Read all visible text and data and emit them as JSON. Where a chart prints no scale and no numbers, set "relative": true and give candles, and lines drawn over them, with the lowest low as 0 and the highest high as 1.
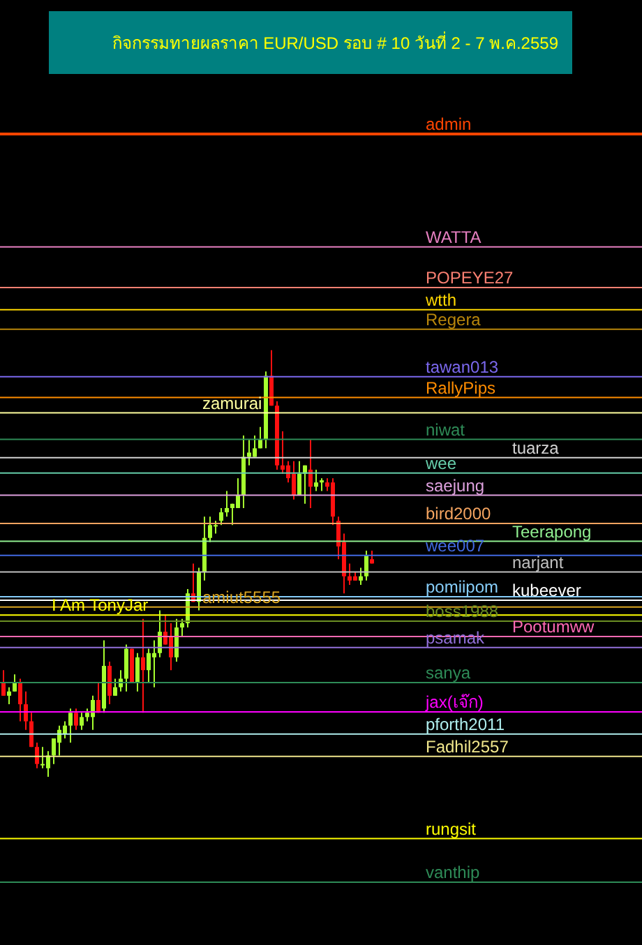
{
  "chart_data": {
    "type": "candlestick",
    "title": "กิจกรรมทายผลราคา EUR/USD รอบ # 10 วันที่ 2 - 7 พ.ค.2559",
    "relative": true,
    "categories": [
      null,
      null,
      null,
      null,
      null,
      null,
      null,
      null,
      null,
      null,
      null,
      null,
      null,
      null,
      null,
      null,
      null,
      null,
      null,
      null,
      null,
      null,
      null,
      null,
      null,
      null,
      null,
      null,
      null,
      null,
      null,
      null,
      null,
      null,
      null,
      null,
      null,
      null,
      null,
      null,
      null,
      null,
      null,
      null,
      null,
      null,
      null,
      null,
      null,
      null,
      null,
      null,
      null,
      null,
      null,
      null,
      null,
      null,
      null,
      null,
      null,
      null,
      null,
      null,
      null,
      null,
      null
    ],
    "ohlc": [
      [
        0.22,
        0.25,
        0.19,
        0.19
      ],
      [
        0.19,
        0.21,
        0.17,
        0.2
      ],
      [
        0.2,
        0.24,
        0.2,
        0.22
      ],
      [
        0.22,
        0.23,
        0.13,
        0.17
      ],
      [
        0.17,
        0.2,
        0.11,
        0.13
      ],
      [
        0.13,
        0.15,
        0.07,
        0.07
      ],
      [
        0.07,
        0.08,
        0.02,
        0.03
      ],
      [
        0.03,
        0.07,
        0.02,
        0.03
      ],
      [
        0.02,
        0.06,
        0,
        0.05
      ],
      [
        0.05,
        0.09,
        0.03,
        0.09
      ],
      [
        0.08,
        0.12,
        0.05,
        0.11
      ],
      [
        0.1,
        0.13,
        0.09,
        0.12
      ],
      [
        0.12,
        0.16,
        0.08,
        0.15
      ],
      [
        0.15,
        0.16,
        0.11,
        0.12
      ],
      [
        0.12,
        0.15,
        0.11,
        0.14
      ],
      [
        0.14,
        0.16,
        0.13,
        0.15
      ],
      [
        0.14,
        0.19,
        0.11,
        0.18
      ],
      [
        0.18,
        0.22,
        0.15,
        0.15
      ],
      [
        0.16,
        0.32,
        0.15,
        0.26
      ],
      [
        0.26,
        0.27,
        0.17,
        0.19
      ],
      [
        0.19,
        0.23,
        0.19,
        0.21
      ],
      [
        0.21,
        0.25,
        0.2,
        0.23
      ],
      [
        0.23,
        0.31,
        0.2,
        0.3
      ],
      [
        0.3,
        0.3,
        0.22,
        0.22
      ],
      [
        0.22,
        0.29,
        0.2,
        0.28
      ],
      [
        0.28,
        0.37,
        0.15,
        0.25
      ],
      [
        0.25,
        0.3,
        0.22,
        0.29
      ],
      [
        0.28,
        0.32,
        0.21,
        0.29
      ],
      [
        0.29,
        0.39,
        0.28,
        0.34
      ],
      [
        0.34,
        0.38,
        0.31,
        0.31
      ],
      [
        0.33,
        0.36,
        0.25,
        0.28
      ],
      [
        0.28,
        0.37,
        0.27,
        0.35
      ],
      [
        0.35,
        0.37,
        0.33,
        0.36
      ],
      [
        0.36,
        0.44,
        0.35,
        0.43
      ],
      [
        0.43,
        0.5,
        0.41,
        0.41
      ],
      [
        0.41,
        0.49,
        0.39,
        0.48
      ],
      [
        0.48,
        0.61,
        0.46,
        0.56
      ],
      [
        0.56,
        0.61,
        0.55,
        0.59
      ],
      [
        0.59,
        0.6,
        0.57,
        0.59
      ],
      [
        0.6,
        0.63,
        0.59,
        0.62
      ],
      [
        0.62,
        0.67,
        0.61,
        0.63
      ],
      [
        0.63,
        0.64,
        0.59,
        0.64
      ],
      [
        0.63,
        0.7,
        0.63,
        0.66
      ],
      [
        0.66,
        0.8,
        0.63,
        0.75
      ],
      [
        0.75,
        0.79,
        0.73,
        0.76
      ],
      [
        0.75,
        0.8,
        0.75,
        0.77
      ],
      [
        0.77,
        0.82,
        0.77,
        0.79
      ],
      [
        0.79,
        0.95,
        0.77,
        0.94
      ],
      [
        0.94,
        1,
        0.87,
        0.87
      ],
      [
        0.87,
        0.88,
        0.72,
        0.73
      ],
      [
        0.73,
        0.81,
        0.71,
        0.72
      ],
      [
        0.73,
        0.74,
        0.69,
        0.7
      ],
      [
        0.71,
        0.74,
        0.65,
        0.66
      ],
      [
        0.66,
        0.74,
        0.66,
        0.71
      ],
      [
        0.71,
        0.73,
        0.64,
        0.73
      ],
      [
        0.72,
        0.79,
        0.63,
        0.68
      ],
      [
        0.68,
        0.72,
        0.67,
        0.69
      ],
      [
        0.69,
        0.7,
        0.67,
        0.695
      ],
      [
        0.69,
        0.7,
        0.67,
        0.68
      ],
      [
        0.69,
        0.7,
        0.59,
        0.61
      ],
      [
        0.6,
        0.61,
        0.51,
        0.54
      ],
      [
        0.55,
        0.57,
        0.43,
        0.47
      ],
      [
        0.47,
        0.5,
        0.45,
        0.46
      ],
      [
        0.47,
        0.48,
        0.46,
        0.46
      ],
      [
        0.46,
        0.49,
        0.45,
        0.47
      ],
      [
        0.47,
        0.53,
        0.46,
        0.52
      ],
      [
        0.51,
        0.53,
        0.5,
        0.5
      ]
    ],
    "ref_lines": [
      {
        "axis": "y",
        "value": 1.507,
        "label": "admin",
        "color": "#ff4500"
      },
      {
        "axis": "y",
        "value": 1.242,
        "label": "WATTA",
        "color": "#e57fc0"
      },
      {
        "axis": "y",
        "value": 1.147,
        "label": "POPEYE27",
        "color": "#fa8072"
      },
      {
        "axis": "y",
        "value": 1.095,
        "label": "wtth",
        "color": "#ffd700"
      },
      {
        "axis": "y",
        "value": 1.049,
        "label": "Regera",
        "color": "#b8860b"
      },
      {
        "axis": "y",
        "value": 0.938,
        "label": "tawan013",
        "color": "#7b68ee"
      },
      {
        "axis": "y",
        "value": 0.889,
        "label": "RallyPips",
        "color": "#ff8c00"
      },
      {
        "axis": "y",
        "value": 0.853,
        "label": "zamurai",
        "color": "#ffffa0"
      },
      {
        "axis": "y",
        "value": 0.791,
        "label": "niwat",
        "color": "#2e8b57"
      },
      {
        "axis": "y",
        "value": 0.748,
        "label": "tuarza",
        "color": "#d3d3d3"
      },
      {
        "axis": "y",
        "value": 0.712,
        "label": "wee",
        "color": "#66cdaa"
      },
      {
        "axis": "y",
        "value": 0.66,
        "label": "saejung",
        "color": "#dda0dd"
      },
      {
        "axis": "y",
        "value": 0.594,
        "label": "bird2000",
        "color": "#f4a460"
      },
      {
        "axis": "y",
        "value": 0.552,
        "label": "Teerapong",
        "color": "#90ee90"
      },
      {
        "axis": "y",
        "value": 0.519,
        "label": "wee007",
        "color": "#4169e1"
      },
      {
        "axis": "y",
        "value": 0.48,
        "label": "narjant",
        "color": "#c0c0c0"
      },
      {
        "axis": "y",
        "value": 0.422,
        "label": "pomiipom",
        "color": "#87cefa"
      },
      {
        "axis": "y",
        "value": 0.414,
        "label": "kubeever",
        "color": "#ffffff"
      },
      {
        "axis": "y",
        "value": 0.398,
        "label": "amiut5555",
        "color": "#daa520"
      },
      {
        "axis": "y",
        "value": 0.379,
        "label": "I Am TonyJar",
        "color": "#ffff00"
      },
      {
        "axis": "y",
        "value": 0.365,
        "label": "boss1988",
        "color": "#6b8e23"
      },
      {
        "axis": "y",
        "value": 0.329,
        "label": "Pootumww",
        "color": "#ff69b4"
      },
      {
        "axis": "y",
        "value": 0.303,
        "label": "psamak",
        "color": "#9370db"
      },
      {
        "axis": "y",
        "value": 0.221,
        "label": "sanya",
        "color": "#2e8b57"
      },
      {
        "axis": "y",
        "value": 0.152,
        "label": "jax(เจ๊ก)",
        "color": "#ff00ff"
      },
      {
        "axis": "y",
        "value": 0.1,
        "label": "pforth2011",
        "color": "#afeeee"
      },
      {
        "axis": "y",
        "value": 0.048,
        "label": "Fadhil2557",
        "color": "#f0e68c"
      },
      {
        "axis": "y",
        "value": -0.145,
        "label": "rungsit",
        "color": "#ffff00"
      },
      {
        "axis": "y",
        "value": -0.247,
        "label": "vanthip",
        "color": "#2e8b57"
      }
    ]
  }
}
